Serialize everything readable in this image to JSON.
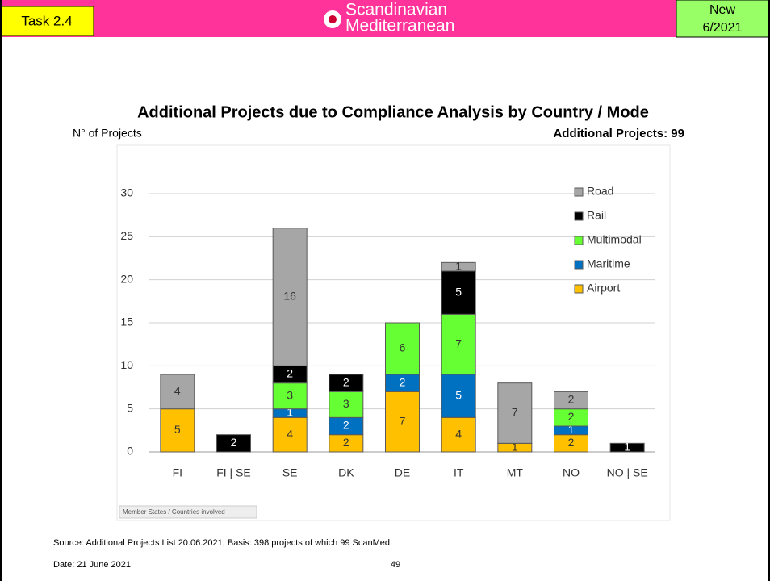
{
  "header": {
    "task": "Task 2.4",
    "logo_line1": "Scandinavian",
    "logo_line2": "Mediterranean",
    "badge_line1": "New",
    "badge_line2": "6/2021"
  },
  "title": "Additional Projects due to Compliance Analysis by Country / Mode",
  "chart_data": {
    "type": "stacked_bar",
    "y_label": "N° of Projects",
    "note": "Additional Projects: 99",
    "x_label": "Member States / Countries involved",
    "categories": [
      "FI",
      "FI | SE",
      "SE",
      "DK",
      "DE",
      "IT",
      "MT",
      "NO",
      "NO | SE"
    ],
    "series": [
      {
        "name": "Airport",
        "color": "#ffc000",
        "label_color": "#333333",
        "values": [
          5,
          null,
          4,
          2,
          7,
          4,
          1,
          2,
          null
        ]
      },
      {
        "name": "Maritime",
        "color": "#0070c0",
        "label_color": "#ffffff",
        "values": [
          null,
          null,
          1,
          2,
          2,
          5,
          null,
          1,
          null
        ]
      },
      {
        "name": "Multimodal",
        "color": "#66ff33",
        "label_color": "#333333",
        "values": [
          null,
          null,
          3,
          3,
          6,
          7,
          null,
          2,
          null
        ]
      },
      {
        "name": "Rail",
        "color": "#000000",
        "label_color": "#ffffff",
        "values": [
          null,
          2,
          2,
          2,
          null,
          5,
          null,
          null,
          1
        ]
      },
      {
        "name": "Road",
        "color": "#a6a6a6",
        "label_color": "#333333",
        "values": [
          4,
          null,
          16,
          null,
          null,
          1,
          7,
          2,
          null
        ]
      }
    ],
    "ylim": [
      0,
      30
    ],
    "yticks": [
      0,
      5,
      10,
      15,
      20,
      25,
      30
    ],
    "grid": true,
    "legend": "right"
  },
  "footer": {
    "source": "Source: Additional Projects List 20.06.2021, Basis: 398 projects of which 99 ScanMed",
    "date": "Date: 21 June 2021",
    "page": "49"
  }
}
